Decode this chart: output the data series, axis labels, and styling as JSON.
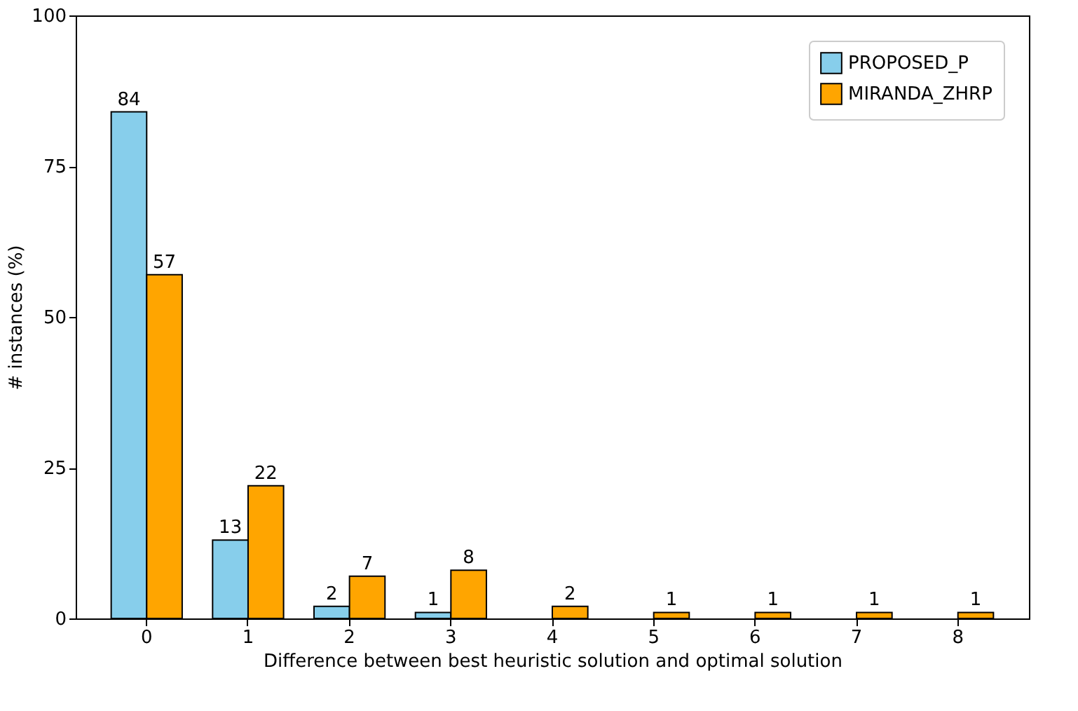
{
  "chart_data": {
    "type": "bar",
    "xlabel": "Difference between best heuristic solution and optimal solution",
    "ylabel": "# instances (%)",
    "categories": [
      "0",
      "1",
      "2",
      "3",
      "4",
      "5",
      "6",
      "7",
      "8"
    ],
    "series": [
      {
        "name": "PROPOSED_P",
        "color": "#87ceeb",
        "values": [
          84,
          13,
          2,
          1,
          null,
          null,
          null,
          null,
          null
        ]
      },
      {
        "name": "MIRANDA_ZHRP",
        "color": "#ffa500",
        "values": [
          57,
          22,
          7,
          8,
          2,
          1,
          1,
          1,
          1
        ]
      }
    ],
    "ylim": [
      0,
      100
    ],
    "yticks": [
      0,
      25,
      50,
      75,
      100
    ],
    "data_labels": true,
    "legend": "top right",
    "grid": false
  }
}
